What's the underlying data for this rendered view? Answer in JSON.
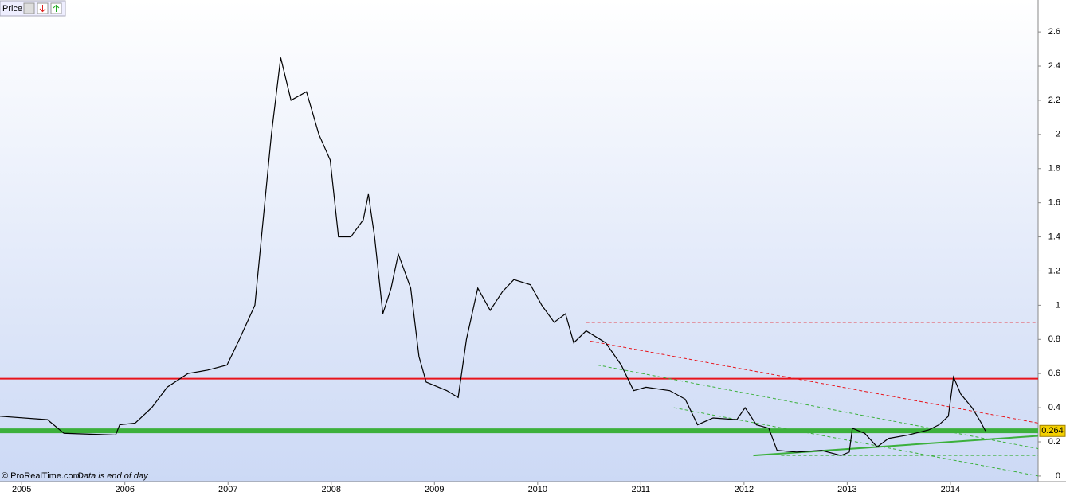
{
  "chart_data": {
    "type": "line",
    "title": "Price",
    "credit": "© ProRealTime.com",
    "note": "Data is end of day",
    "x": [
      2004.79,
      2005.25,
      2005.41,
      2005.91,
      2005.95,
      2006.1,
      2006.26,
      2006.41,
      2006.61,
      2006.8,
      2006.99,
      2007.11,
      2007.26,
      2007.34,
      2007.42,
      2007.51,
      2007.61,
      2007.76,
      2007.88,
      2007.99,
      2008.07,
      2008.19,
      2008.31,
      2008.36,
      2008.42,
      2008.5,
      2008.58,
      2008.65,
      2008.77,
      2008.85,
      2008.92,
      2009.12,
      2009.23,
      2009.31,
      2009.42,
      2009.54,
      2009.66,
      2009.77,
      2009.93,
      2010.04,
      2010.16,
      2010.27,
      2010.35,
      2010.47,
      2010.66,
      2010.81,
      2010.93,
      2011.05,
      2011.28,
      2011.43,
      2011.55,
      2011.7,
      2011.93,
      2012.01,
      2012.12,
      2012.24,
      2012.32,
      2012.51,
      2012.75,
      2012.94,
      2013.02,
      2013.05,
      2013.17,
      2013.29,
      2013.4,
      2013.59,
      2013.79,
      2013.89,
      2013.98,
      2014.03,
      2014.1,
      2014.21,
      2014.29,
      2014.34
    ],
    "series": [
      {
        "name": "Price",
        "color": "#000000",
        "values": [
          0.35,
          0.33,
          0.25,
          0.24,
          0.3,
          0.31,
          0.4,
          0.52,
          0.6,
          0.62,
          0.65,
          0.8,
          1.0,
          1.5,
          2.0,
          2.45,
          2.2,
          2.25,
          2.0,
          1.85,
          1.4,
          1.4,
          1.5,
          1.65,
          1.4,
          0.95,
          1.1,
          1.3,
          1.1,
          0.7,
          0.55,
          0.5,
          0.46,
          0.8,
          1.1,
          0.97,
          1.08,
          1.15,
          1.12,
          1.0,
          0.9,
          0.95,
          0.78,
          0.85,
          0.78,
          0.65,
          0.5,
          0.52,
          0.5,
          0.45,
          0.3,
          0.34,
          0.33,
          0.4,
          0.3,
          0.28,
          0.15,
          0.14,
          0.15,
          0.12,
          0.14,
          0.28,
          0.25,
          0.17,
          0.22,
          0.24,
          0.27,
          0.3,
          0.35,
          0.58,
          0.48,
          0.4,
          0.32,
          0.264
        ]
      }
    ],
    "last_price": 0.264,
    "lines": [
      {
        "x": [
          2004.79,
          2014.85
        ],
        "y": [
          0.57,
          0.57
        ],
        "color": "#e8141b",
        "style": "solid"
      },
      {
        "x": [
          2004.79,
          2014.85
        ],
        "y": [
          0.265,
          0.265
        ],
        "color": "#3cb03c",
        "style": "thick"
      },
      {
        "x": [
          2010.47,
          2014.85
        ],
        "y": [
          0.9,
          0.9
        ],
        "color": "#e8141b",
        "style": "dashed"
      },
      {
        "x": [
          2010.51,
          2014.85
        ],
        "y": [
          0.79,
          0.31
        ],
        "color": "#e8141b",
        "style": "dashed"
      },
      {
        "x": [
          2010.58,
          2014.85
        ],
        "y": [
          0.65,
          0.16
        ],
        "color": "#3cb03c",
        "style": "dashed"
      },
      {
        "x": [
          2011.32,
          2014.85
        ],
        "y": [
          0.4,
          0.0
        ],
        "color": "#3cb03c",
        "style": "dashed"
      },
      {
        "x": [
          2012.09,
          2014.85
        ],
        "y": [
          0.12,
          0.235
        ],
        "color": "#3cb03c",
        "style": "solid"
      },
      {
        "x": [
          2012.36,
          2014.85
        ],
        "y": [
          0.12,
          0.12
        ],
        "color": "#3cb03c",
        "style": "dashed"
      }
    ],
    "xlim": [
      2004.79,
      2014.85
    ],
    "xticks": [
      2005,
      2006,
      2007,
      2008,
      2009,
      2010,
      2011,
      2012,
      2013,
      2014
    ],
    "ylim": [
      -0.033,
      2.787
    ],
    "yticks": [
      0,
      0.2,
      0.4,
      0.6,
      0.8,
      1,
      1.2,
      1.4,
      1.6,
      1.8,
      2,
      2.2,
      2.4,
      2.6
    ]
  }
}
